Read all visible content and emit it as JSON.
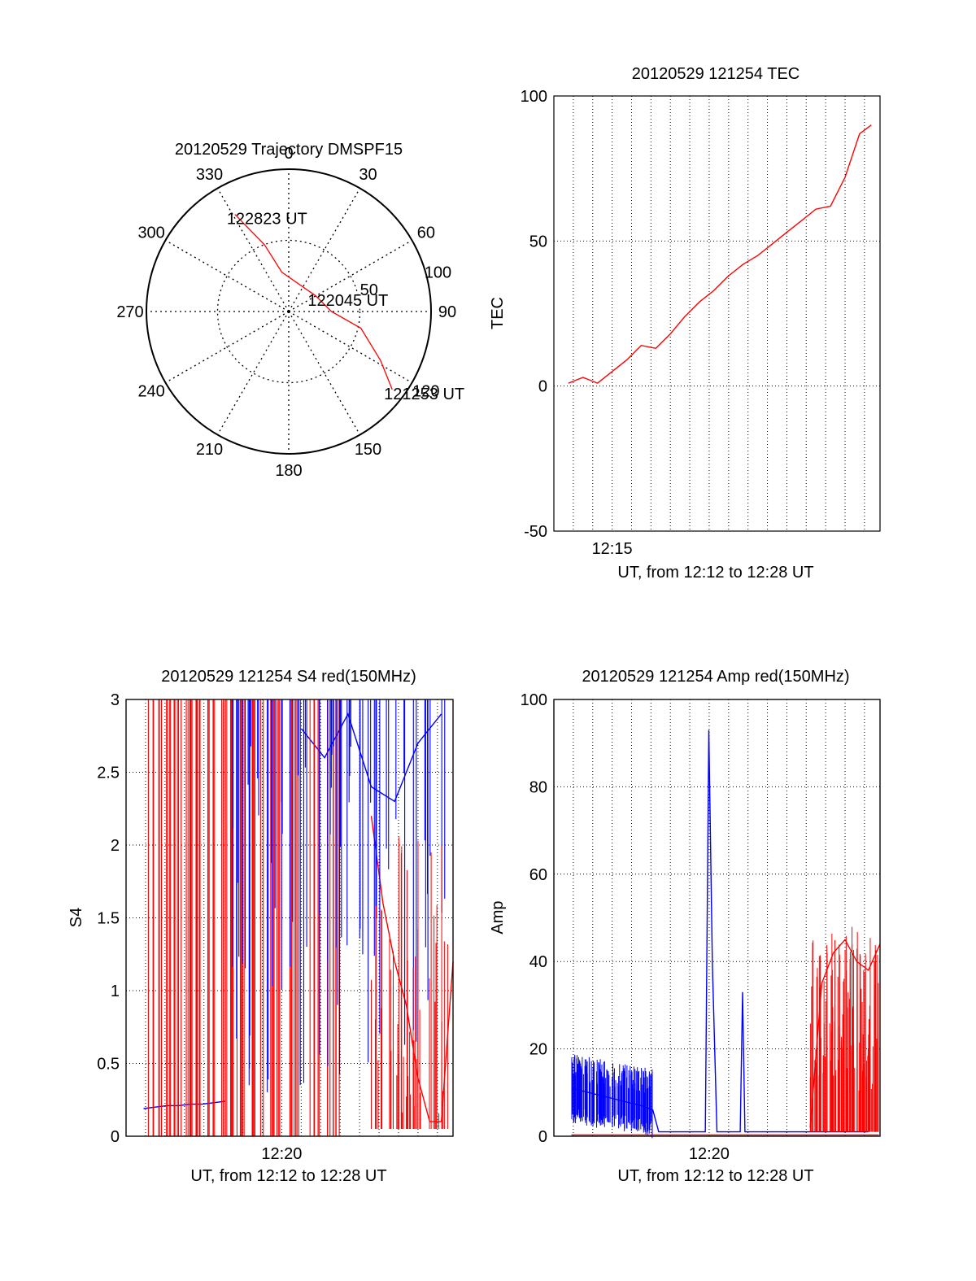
{
  "colors": {
    "red": "#ff0000",
    "blue": "#0000ff",
    "axis": "#000000",
    "grid": "#000000"
  },
  "chart_data": [
    {
      "type": "polar",
      "title": "20120529 Trajectory DMSPF15",
      "angle_labels": [
        "0",
        "30",
        "60",
        "90",
        "120",
        "150",
        "180",
        "210",
        "240",
        "270",
        "300",
        "330"
      ],
      "radial_labels": [
        "50",
        "100"
      ],
      "series": [
        {
          "color": "red",
          "points": [
            {
              "az": 331,
              "r": 78
            },
            {
              "az": 340,
              "r": 50
            },
            {
              "az": 350,
              "r": 28
            },
            {
              "az": 60,
              "r": 22
            },
            {
              "az": 90,
              "r": 30
            },
            {
              "az": 103,
              "r": 52
            },
            {
              "az": 118,
              "r": 73
            },
            {
              "az": 127,
              "r": 91
            }
          ]
        }
      ],
      "annotations": [
        {
          "text": "122823 UT",
          "az": 331,
          "r": 78
        },
        {
          "text": "122045 UT",
          "az": 60,
          "r": 22
        },
        {
          "text": "121253 UT",
          "az": 127,
          "r": 91
        }
      ]
    },
    {
      "type": "line",
      "title": "20120529 121254 TEC",
      "xlabel": "UT, from 12:12 to 12:28 UT",
      "ylabel": "TEC",
      "xlim": [
        12.2,
        12.48
      ],
      "ylim": [
        -50,
        100
      ],
      "yticks": [
        "-50",
        "0",
        "50",
        "100"
      ],
      "xticks": [
        {
          "value": 12.25,
          "label": "12:15"
        }
      ],
      "grid": true,
      "series": [
        {
          "color": "red",
          "x": [
            12.2125,
            12.225,
            12.2375,
            12.25,
            12.2625,
            12.275,
            12.2875,
            12.3,
            12.3125,
            12.325,
            12.3375,
            12.35,
            12.3625,
            12.375,
            12.3875,
            12.4,
            12.4125,
            12.425,
            12.4375,
            12.45,
            12.4625,
            12.4725
          ],
          "y": [
            1,
            3,
            1,
            5,
            9,
            14,
            13,
            18,
            24,
            29,
            33,
            38,
            42,
            45,
            49,
            53,
            57,
            61,
            62,
            72,
            87,
            90
          ]
        }
      ]
    },
    {
      "type": "line",
      "title": "20120529 121254 S4 red(150MHz)",
      "xlabel": "UT, from 12:12 to 12:28 UT",
      "ylabel": "S4",
      "xlim": [
        12.2,
        12.48
      ],
      "ylim": [
        0,
        3
      ],
      "yticks": [
        "0",
        "0.5",
        "1",
        "1.5",
        "2",
        "2.5",
        "3"
      ],
      "xticks": [
        {
          "value": 12.3333,
          "label": "12:20"
        }
      ],
      "grid": true,
      "series": [
        {
          "color": "blue",
          "note_bands": true,
          "x": [
            12.215,
            12.225,
            12.235,
            12.245,
            12.255,
            12.265,
            12.275,
            12.285
          ],
          "y": [
            0.19,
            0.2,
            0.21,
            0.21,
            0.22,
            0.22,
            0.23,
            0.24
          ]
        },
        {
          "color": "blue",
          "x": [
            12.35,
            12.37,
            12.39,
            12.41,
            12.43,
            12.45,
            12.47
          ],
          "y": [
            2.8,
            2.6,
            2.9,
            2.4,
            2.3,
            2.7,
            2.9
          ]
        },
        {
          "color": "red",
          "x": [
            12.41,
            12.42,
            12.43,
            12.44,
            12.45,
            12.46,
            12.47,
            12.48
          ],
          "y": [
            2.2,
            1.6,
            1.2,
            0.9,
            0.4,
            0.1,
            0.1,
            1.2
          ]
        }
      ]
    },
    {
      "type": "line",
      "title": "20120529 121254 Amp red(150MHz)",
      "xlabel": "UT, from 12:12 to 12:28 UT",
      "ylabel": "Amp",
      "xlim": [
        12.2,
        12.48
      ],
      "ylim": [
        0,
        100
      ],
      "yticks": [
        "0",
        "20",
        "40",
        "60",
        "80",
        "100"
      ],
      "xticks": [
        {
          "value": 12.3333,
          "label": "12:20"
        }
      ],
      "grid": true,
      "series": [
        {
          "color": "blue",
          "x": [
            12.215,
            12.23,
            12.245,
            12.26,
            12.275,
            12.285,
            12.29,
            12.31,
            12.33,
            12.333,
            12.336,
            12.34,
            12.35,
            12.36,
            12.362,
            12.364,
            12.37,
            12.4,
            12.43,
            12.47
          ],
          "y": [
            11,
            10,
            9,
            8,
            7,
            6,
            1,
            1,
            1,
            93,
            40,
            1,
            1,
            1,
            33,
            1,
            1,
            1,
            1,
            1
          ]
        },
        {
          "color": "red",
          "x": [
            12.42,
            12.43,
            12.44,
            12.45,
            12.46,
            12.47,
            12.48
          ],
          "y": [
            2,
            35,
            42,
            45,
            40,
            38,
            44
          ]
        }
      ]
    }
  ]
}
